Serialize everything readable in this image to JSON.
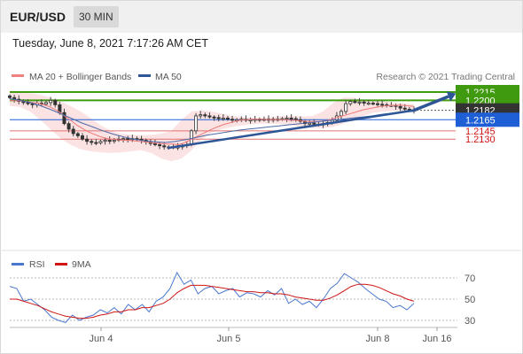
{
  "header": {
    "pair": "EUR/USD",
    "timeframe": "30 MIN",
    "datetime": "Tuesday, June 8, 2021 7:17:26 AM CET"
  },
  "legend": {
    "ma20": "MA 20 + Bollinger Bands",
    "ma50": "MA 50",
    "ma20_color": "#f28080",
    "ma50_color": "#2e5595",
    "credit": "Research © 2021 Trading Central"
  },
  "levels": [
    {
      "label": "1.2215",
      "value": 1.2215,
      "kind": "resistance",
      "color": "#3f9a10"
    },
    {
      "label": "1.2200",
      "value": 1.22,
      "kind": "resistance",
      "color": "#3f9a10"
    },
    {
      "label": "1.2182",
      "value": 1.2182,
      "kind": "last-price",
      "color": "#333333"
    },
    {
      "label": "1.2165",
      "value": 1.2165,
      "kind": "pivot",
      "color": "#1f5fd6"
    },
    {
      "label": "1.2145",
      "value": 1.2145,
      "kind": "support",
      "color": "#e07070"
    },
    {
      "label": "1.2130",
      "value": 1.213,
      "kind": "support",
      "color": "#e07070"
    }
  ],
  "rsi_legend": {
    "rsi": "RSI",
    "ma": "9MA",
    "rsi_color": "#4a78d0",
    "ma_color": "#d01515"
  },
  "rsi_axis": [
    "70",
    "50",
    "30"
  ],
  "x_axis": [
    "Jun 4",
    "Jun 5",
    "Jun 8",
    "Jun 16"
  ],
  "chart_data": {
    "type": "candlestick",
    "price_close": [
      1.2205,
      1.2202,
      1.2198,
      1.2196,
      1.2194,
      1.2192,
      1.2195,
      1.2193,
      1.2196,
      1.22,
      1.2192,
      1.2178,
      1.2158,
      1.2148,
      1.214,
      1.2136,
      1.213,
      1.2126,
      1.2124,
      1.2123,
      1.2126,
      1.2128,
      1.2126,
      1.2128,
      1.213,
      1.2131,
      1.2129,
      1.2131,
      1.213,
      1.2128,
      1.2125,
      1.2122,
      1.212,
      1.2118,
      1.2116,
      1.2115,
      1.2116,
      1.2116,
      1.2118,
      1.212,
      1.2145,
      1.2172,
      1.2174,
      1.2172,
      1.217,
      1.2169,
      1.2167,
      1.2168,
      1.2166,
      1.2165,
      1.2165,
      1.2166,
      1.2164,
      1.2165,
      1.2166,
      1.2165,
      1.2166,
      1.2165,
      1.2166,
      1.2166,
      1.2167,
      1.2168,
      1.2167,
      1.2165,
      1.2162,
      1.2158,
      1.2159,
      1.2157,
      1.2156,
      1.2158,
      1.216,
      1.2164,
      1.2172,
      1.218,
      1.2194,
      1.2198,
      1.2197,
      1.2197,
      1.2195,
      1.2195,
      1.2194,
      1.2193,
      1.2192,
      1.2191,
      1.2191,
      1.2189,
      1.2186,
      1.2184,
      1.2183,
      1.2182
    ],
    "ma20": [
      1.22,
      1.2199,
      1.2199,
      1.2198,
      1.2196,
      1.2195,
      1.2192,
      1.2189,
      1.2184,
      1.2178,
      1.217,
      1.2163,
      1.2155,
      1.2149,
      1.2143,
      1.2139,
      1.2135,
      1.2132,
      1.213,
      1.2129,
      1.2128,
      1.2128,
      1.2127,
      1.2126,
      1.2125,
      1.2124,
      1.2123,
      1.2122,
      1.2121,
      1.2121,
      1.212,
      1.2123,
      1.2128,
      1.2133,
      1.2138,
      1.2143,
      1.2148,
      1.2152,
      1.2156,
      1.2159,
      1.2162,
      1.2164,
      1.2165,
      1.2166,
      1.2166,
      1.2166,
      1.2165,
      1.2165,
      1.2165,
      1.2165,
      1.2164,
      1.2164,
      1.2163,
      1.2162,
      1.2162,
      1.2162,
      1.2163,
      1.2165,
      1.2168,
      1.2171,
      1.2174,
      1.2177,
      1.218,
      1.2183,
      1.2185,
      1.2187,
      1.2189,
      1.219,
      1.2191,
      1.2191,
      1.2191,
      1.219,
      1.2189
    ],
    "ma50": [
      1.2203,
      1.22,
      1.2196,
      1.219,
      1.2183,
      1.2175,
      1.2167,
      1.2159,
      1.2152,
      1.2145,
      1.2139,
      1.2134,
      1.213,
      1.2127,
      1.2125,
      1.2124,
      1.2126,
      1.2129,
      1.2133,
      1.2137,
      1.214,
      1.2143,
      1.2146,
      1.2148,
      1.215,
      1.2152,
      1.2154,
      1.2156,
      1.2158,
      1.216,
      1.2162,
      1.2164,
      1.2166,
      1.2168,
      1.217,
      1.2172,
      1.2175,
      1.2177,
      1.2179,
      1.218
    ],
    "bollinger_upper": [
      1.2215,
      1.2214,
      1.2213,
      1.221,
      1.2205,
      1.2198,
      1.219,
      1.218,
      1.2168,
      1.2155,
      1.2145,
      1.214,
      1.2138,
      1.2137,
      1.2138,
      1.214,
      1.2145,
      1.2165,
      1.218,
      1.2182,
      1.218,
      1.2176,
      1.2172,
      1.217,
      1.2168,
      1.2168,
      1.217,
      1.2172,
      1.2172,
      1.2171,
      1.2172,
      1.218,
      1.2195,
      1.2205,
      1.2205,
      1.22,
      1.22,
      1.2198,
      1.2196,
      1.2195,
      1.2193
    ],
    "bollinger_lower": [
      1.219,
      1.2188,
      1.218,
      1.2165,
      1.2148,
      1.2132,
      1.212,
      1.2112,
      1.2108,
      1.2106,
      1.2105,
      1.2106,
      1.2108,
      1.211,
      1.2105,
      1.2095,
      1.209,
      1.2095,
      1.211,
      1.213,
      1.2142,
      1.2148,
      1.2152,
      1.2155,
      1.2157,
      1.2158,
      1.2158,
      1.2157,
      1.2155,
      1.2152,
      1.215,
      1.215,
      1.2152,
      1.2158,
      1.2165,
      1.2172,
      1.2178,
      1.218,
      1.2181,
      1.2181,
      1.2181
    ],
    "trendline": {
      "start": 1.2114,
      "end": 1.2182
    },
    "forecast_target": 1.2215,
    "rsi": [
      62,
      60,
      48,
      50,
      45,
      40,
      33,
      30,
      28,
      35,
      30,
      33,
      35,
      40,
      37,
      42,
      36,
      45,
      40,
      45,
      38,
      48,
      52,
      60,
      75,
      64,
      68,
      55,
      60,
      62,
      55,
      58,
      60,
      52,
      56,
      55,
      52,
      58,
      54,
      60,
      46,
      50,
      45,
      48,
      42,
      50,
      60,
      65,
      74,
      70,
      66,
      60,
      55,
      50,
      48,
      42,
      44,
      40,
      46
    ],
    "rsi_ma": [
      50,
      50,
      48,
      46,
      44,
      41,
      38,
      36,
      34,
      33,
      32,
      32,
      33,
      35,
      36,
      38,
      38,
      40,
      40,
      42,
      42,
      44,
      46,
      50,
      56,
      60,
      63,
      63,
      63,
      62,
      61,
      60,
      59,
      58,
      57,
      57,
      56,
      56,
      55,
      55,
      54,
      52,
      51,
      50,
      49,
      49,
      51,
      54,
      58,
      62,
      64,
      64,
      63,
      61,
      58,
      55,
      53,
      50,
      48
    ],
    "rsi_ylim": [
      20,
      80
    ]
  }
}
